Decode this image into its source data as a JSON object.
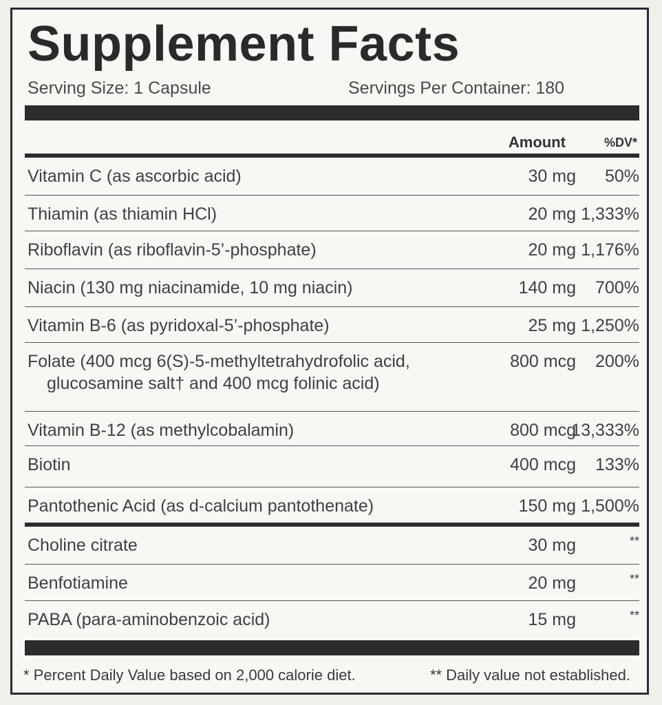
{
  "title": "Supplement Facts",
  "serving_size": "Serving Size: 1 Capsule",
  "servings_per_container": "Servings Per Container: 180",
  "headers": {
    "amount": "Amount",
    "dv": "%DV*"
  },
  "rows": [
    {
      "name": "Vitamin C (as ascorbic acid)",
      "amount": "30 mg",
      "dv": "50%"
    },
    {
      "name": "Thiamin (as thiamin HCl)",
      "amount": "20 mg",
      "dv": "1,333%"
    },
    {
      "name": "Riboflavin (as riboflavin-5’-phosphate)",
      "amount": "20 mg",
      "dv": "1,176%"
    },
    {
      "name": "Niacin (130 mg niacinamide, 10 mg niacin)",
      "amount": "140 mg",
      "dv": "700%"
    },
    {
      "name": "Vitamin B-6 (as pyridoxal-5’-phosphate)",
      "amount": "25 mg",
      "dv": "1,250%"
    },
    {
      "name": "Folate (400 mcg 6(S)-5-methyltetrahydrofolic acid,",
      "name2": "glucosamine salt† and 400 mcg folinic acid)",
      "amount": "800 mcg",
      "dv": "200%"
    },
    {
      "name": "Vitamin B-12 (as methylcobalamin)",
      "amount": "800 mcg",
      "dv": "13,333%"
    },
    {
      "name": "Biotin",
      "amount": "400 mcg",
      "dv": "133%"
    },
    {
      "name": "Pantothenic Acid (as d-calcium pantothenate)",
      "amount": "150 mg",
      "dv": "1,500%"
    },
    {
      "name": "Choline citrate",
      "amount": "30 mg",
      "dv": "**"
    },
    {
      "name": "Benfotiamine",
      "amount": "20 mg",
      "dv": "**"
    },
    {
      "name": "PABA (para-aminobenzoic acid)",
      "amount": "15 mg",
      "dv": "**"
    }
  ],
  "footnotes": {
    "dv": "* Percent Daily Value based on 2,000 calorie diet.",
    "not_established": "** Daily value not established."
  }
}
